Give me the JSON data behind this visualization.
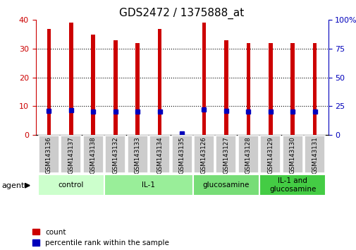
{
  "title": "GDS2472 / 1375888_at",
  "samples": [
    "GSM143136",
    "GSM143137",
    "GSM143138",
    "GSM143132",
    "GSM143133",
    "GSM143134",
    "GSM143135",
    "GSM143126",
    "GSM143127",
    "GSM143128",
    "GSM143129",
    "GSM143130",
    "GSM143131"
  ],
  "counts": [
    37,
    39,
    35,
    33,
    32,
    37,
    1,
    39,
    33,
    32,
    32,
    32,
    32
  ],
  "percentile_ranks": [
    21,
    21.5,
    20.5,
    20.5,
    20.5,
    20.5,
    1.5,
    22,
    21,
    20.5,
    20.5,
    20.5,
    20.5
  ],
  "groups": [
    {
      "label": "control",
      "start": 0,
      "end": 3,
      "color": "#ccffcc"
    },
    {
      "label": "IL-1",
      "start": 3,
      "end": 7,
      "color": "#99ee99"
    },
    {
      "label": "glucosamine",
      "start": 7,
      "end": 10,
      "color": "#77dd77"
    },
    {
      "label": "IL-1 and\nglucosamine",
      "start": 10,
      "end": 13,
      "color": "#44cc44"
    }
  ],
  "bar_color": "#cc0000",
  "percentile_color": "#0000bb",
  "bar_width": 0.18,
  "ylim_left": [
    0,
    40
  ],
  "ylim_right": [
    0,
    100
  ],
  "yticks_left": [
    0,
    10,
    20,
    30,
    40
  ],
  "yticks_right": [
    0,
    25,
    50,
    75,
    100
  ],
  "title_color": "#000000",
  "left_axis_color": "#cc0000",
  "right_axis_color": "#0000bb",
  "grid_color": "#000000",
  "bg_color": "#ffffff",
  "tick_area_color": "#cccccc",
  "marker_size": 4.5
}
